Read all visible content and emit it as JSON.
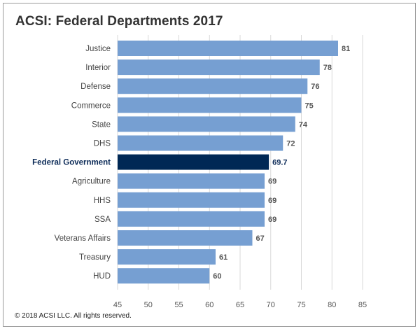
{
  "chart_data": {
    "type": "bar",
    "orientation": "horizontal",
    "title": "ACSI: Federal Departments 2017",
    "categories": [
      "Justice",
      "Interior",
      "Defense",
      "Commerce",
      "State",
      "DHS",
      "Federal Government",
      "Agriculture",
      "HHS",
      "SSA",
      "Veterans Affairs",
      "Treasury",
      "HUD"
    ],
    "values": [
      81,
      78,
      76,
      75,
      74,
      72,
      69.7,
      69,
      69,
      69,
      67,
      61,
      60
    ],
    "value_labels": [
      "81",
      "78",
      "76",
      "75",
      "74",
      "72",
      "69.7",
      "69",
      "69",
      "69",
      "67",
      "61",
      "60"
    ],
    "highlight": "Federal Government",
    "xlim": [
      45,
      85
    ],
    "xticks": [
      45,
      50,
      55,
      60,
      65,
      70,
      75,
      80,
      85
    ],
    "grid": true,
    "colors": {
      "bar": "#769fd2",
      "highlight_bar": "#002855",
      "highlight_text": "#0b2a57",
      "grid": "#d9d9d9"
    }
  },
  "footer": "© 2018 ACSI LLC. All rights reserved."
}
